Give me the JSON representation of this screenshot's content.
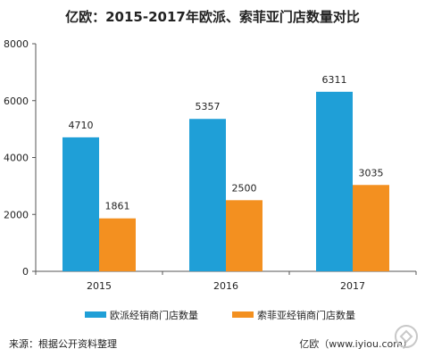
{
  "chart_data": {
    "type": "bar",
    "title": "亿欧：2015-2017年欧派、索菲亚门店数量对比",
    "categories": [
      "2015",
      "2016",
      "2017"
    ],
    "series": [
      {
        "name": "欧派经销商门店数量",
        "values": [
          4710,
          5357,
          6311
        ],
        "color": "#1f9fd7"
      },
      {
        "name": "索菲亚经销商门店数量",
        "values": [
          1861,
          2500,
          3035
        ],
        "color": "#f39020"
      }
    ],
    "yticks": [
      0,
      2000,
      4000,
      6000,
      8000
    ],
    "ylim": [
      0,
      8000
    ],
    "grid": false,
    "legend": "bottom",
    "data_labels": true
  },
  "footer": {
    "source": "来源：根据公开资料整理",
    "watermark": "亿欧（www.iyiou.com）"
  }
}
